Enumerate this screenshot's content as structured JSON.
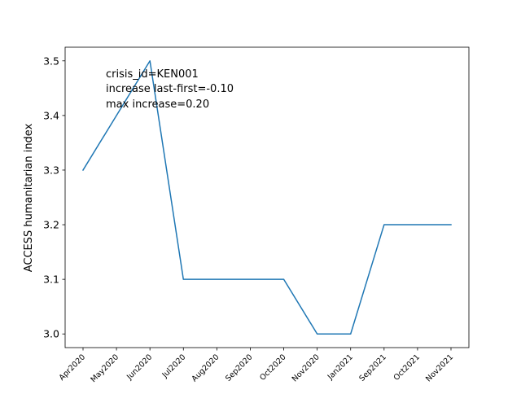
{
  "chart_data": {
    "type": "line",
    "title": "",
    "xlabel": "",
    "ylabel": "ACCESS humanitarian index",
    "categories": [
      "Apr2020",
      "May2020",
      "Jun2020",
      "Jul2020",
      "Aug2020",
      "Sep2020",
      "Oct2020",
      "Nov2020",
      "Jan2021",
      "Sep2021",
      "Oct2021",
      "Nov2021"
    ],
    "series": [
      {
        "values": [
          3.3,
          3.4,
          3.5,
          3.1,
          3.1,
          3.1,
          3.1,
          3.0,
          3.0,
          3.2,
          3.2,
          3.2
        ],
        "color": "#1f77b4"
      }
    ],
    "ylim": [
      2.975,
      3.525
    ],
    "yticks": [
      3.0,
      3.1,
      3.2,
      3.3,
      3.4,
      3.5
    ],
    "ytick_labels": [
      "3.0",
      "3.1",
      "3.2",
      "3.3",
      "3.4",
      "3.5"
    ],
    "grid": false,
    "annotations": [
      "crisis_id=KEN001",
      "increase last-first=-0.10",
      "max increase=0.20"
    ]
  }
}
